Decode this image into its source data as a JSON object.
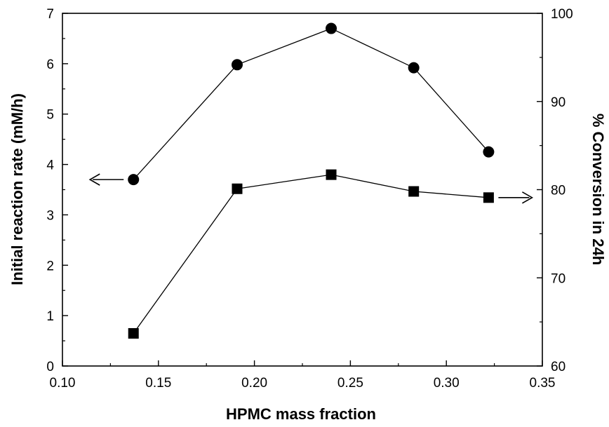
{
  "chart_data": {
    "type": "scatter",
    "xlabel": "HPMC mass fraction",
    "ylabel_left": "Initial reaction rate (mM/h)",
    "ylabel_right": "% Conversion in 24h",
    "xlim": [
      0.1,
      0.35
    ],
    "ylim_left": [
      0,
      7
    ],
    "ylim_right": [
      60,
      100
    ],
    "x_ticks": [
      "0.10",
      "0.15",
      "0.20",
      "0.25",
      "0.30",
      "0.35"
    ],
    "y_left_ticks": [
      "0",
      "1",
      "2",
      "3",
      "4",
      "5",
      "6",
      "7"
    ],
    "y_right_ticks": [
      "60",
      "70",
      "80",
      "90",
      "100"
    ],
    "grid": false,
    "series": [
      {
        "axis": "left",
        "marker": "circle",
        "points": [
          [
            0.137,
            3.7
          ],
          [
            0.191,
            5.98
          ],
          [
            0.24,
            6.7
          ],
          [
            0.283,
            5.92
          ],
          [
            0.322,
            4.25
          ]
        ]
      },
      {
        "axis": "right",
        "marker": "square",
        "points": [
          [
            0.137,
            63.7
          ],
          [
            0.191,
            80.1
          ],
          [
            0.24,
            81.7
          ],
          [
            0.283,
            79.8
          ],
          [
            0.322,
            79.1
          ]
        ]
      }
    ]
  }
}
